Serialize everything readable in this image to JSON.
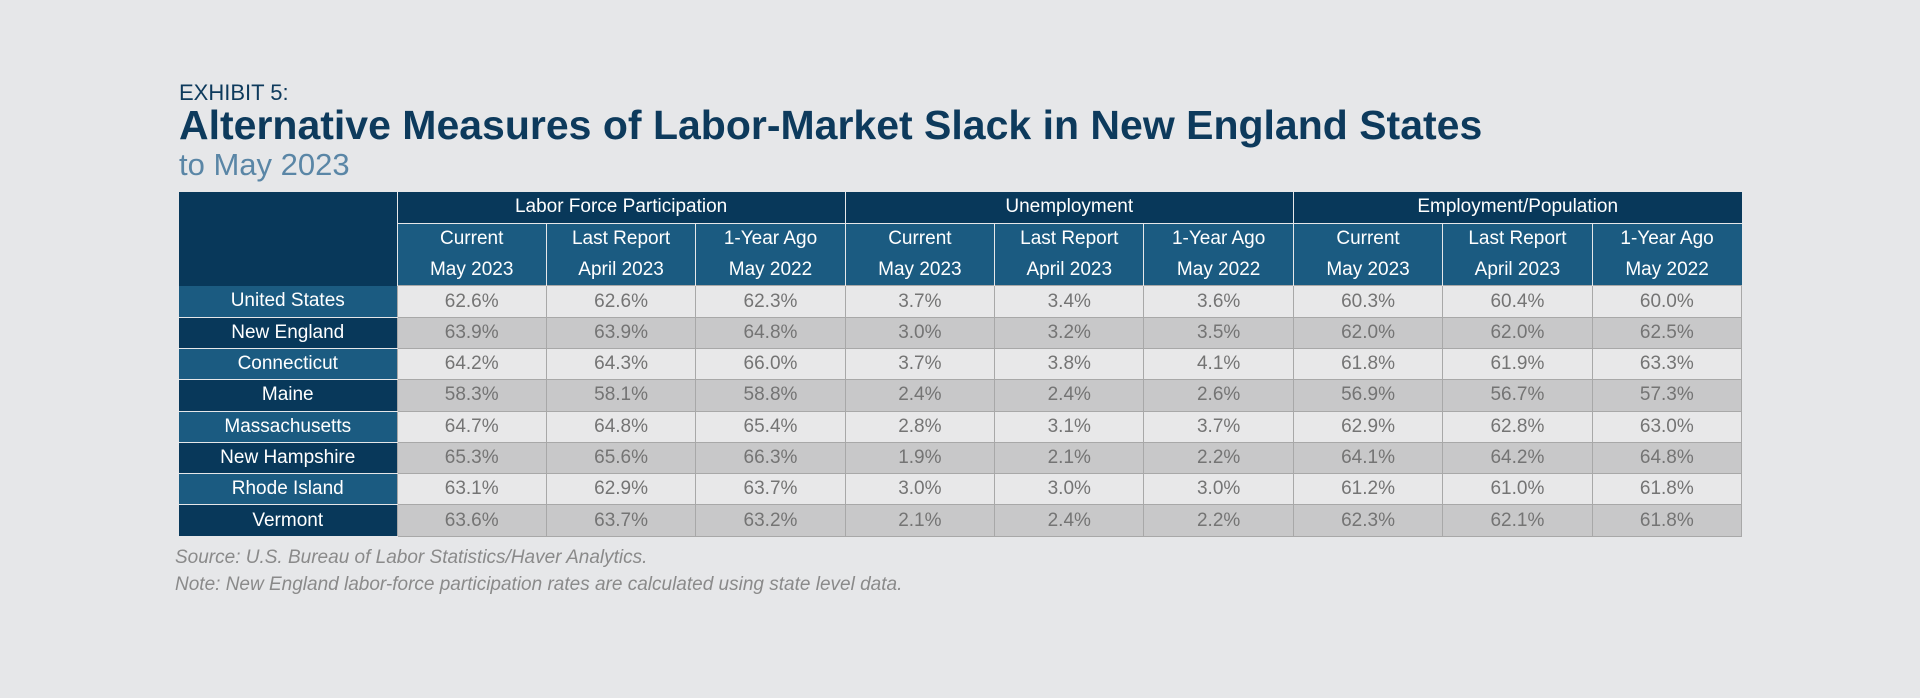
{
  "exhibit_label": "EXHIBIT 5:",
  "title": "Alternative Measures of Labor-Market Slack in New England States",
  "subtitle": "to May 2023",
  "chart_data": {
    "type": "table",
    "groups": [
      "Labor Force Participation",
      "Unemployment",
      "Employment/Population"
    ],
    "subcolumns": [
      {
        "line1": "Current",
        "line2": "May 2023"
      },
      {
        "line1": "Last Report",
        "line2": "April 2023"
      },
      {
        "line1": "1-Year Ago",
        "line2": "May 2022"
      }
    ],
    "rows": [
      {
        "label": "United States",
        "values": [
          "62.6%",
          "62.6%",
          "62.3%",
          "3.7%",
          "3.4%",
          "3.6%",
          "60.3%",
          "60.4%",
          "60.0%"
        ]
      },
      {
        "label": "New England",
        "values": [
          "63.9%",
          "63.9%",
          "64.8%",
          "3.0%",
          "3.2%",
          "3.5%",
          "62.0%",
          "62.0%",
          "62.5%"
        ]
      },
      {
        "label": "Connecticut",
        "values": [
          "64.2%",
          "64.3%",
          "66.0%",
          "3.7%",
          "3.8%",
          "4.1%",
          "61.8%",
          "61.9%",
          "63.3%"
        ]
      },
      {
        "label": "Maine",
        "values": [
          "58.3%",
          "58.1%",
          "58.8%",
          "2.4%",
          "2.4%",
          "2.6%",
          "56.9%",
          "56.7%",
          "57.3%"
        ]
      },
      {
        "label": "Massachusetts",
        "values": [
          "64.7%",
          "64.8%",
          "65.4%",
          "2.8%",
          "3.1%",
          "3.7%",
          "62.9%",
          "62.8%",
          "63.0%"
        ]
      },
      {
        "label": "New Hampshire",
        "values": [
          "65.3%",
          "65.6%",
          "66.3%",
          "1.9%",
          "2.1%",
          "2.2%",
          "64.1%",
          "64.2%",
          "64.8%"
        ]
      },
      {
        "label": "Rhode Island",
        "values": [
          "63.1%",
          "62.9%",
          "63.7%",
          "3.0%",
          "3.0%",
          "3.0%",
          "61.2%",
          "61.0%",
          "61.8%"
        ]
      },
      {
        "label": "Vermont",
        "values": [
          "63.6%",
          "63.7%",
          "63.2%",
          "2.1%",
          "2.4%",
          "2.2%",
          "62.3%",
          "62.1%",
          "61.8%"
        ]
      }
    ]
  },
  "footnotes": {
    "source": "Source: U.S. Bureau of Labor Statistics/Haver Analytics.",
    "note": "Note: New England labor-force participation rates are calculated using state level data."
  },
  "colors": {
    "background": "#e6e7e9",
    "header_dark": "#08385a",
    "header_mid": "#1b5b81",
    "title": "#0d3a5c",
    "subtitle": "#5a86a6",
    "cell_light": "#e8e8e9",
    "cell_dark": "#c8c8c9",
    "cell_text": "#747474"
  }
}
